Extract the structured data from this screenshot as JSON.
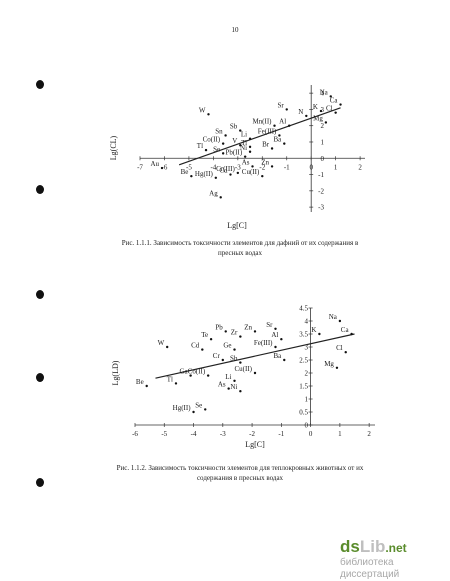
{
  "page": {
    "number": "10"
  },
  "captions": [
    "Рис. 1.1.1. Зависимость токсичности элементов для дафний от их содержания в пресных водах",
    "Рис. 1.1.2. Зависимость токсичности элементов для теплокровных животных от их содержания в пресных водах"
  ],
  "watermark": {
    "logo_ds": "ds",
    "logo_lib": "Lib",
    "logo_net": ".net",
    "subtitle": "библиотека диссертаций"
  },
  "chart_data": [
    {
      "type": "scatter",
      "title": "",
      "xlabel": "Lg[C]",
      "ylabel": "Lg(CL)",
      "xlim": [
        -7,
        2.2
      ],
      "ylim": [
        -3.3,
        4.5
      ],
      "x_ticks": [
        "-7",
        "-6",
        "-5",
        "-4",
        "-3",
        "-2",
        "-1",
        "0",
        "1",
        "2"
      ],
      "y_ticks": [
        "4",
        "3",
        "2",
        "1",
        "0",
        "-1",
        "-2",
        "-3"
      ],
      "points": [
        {
          "label": "W",
          "x": -4.2,
          "y": 2.7
        },
        {
          "label": "Sn",
          "x": -3.5,
          "y": 1.4
        },
        {
          "label": "Sb",
          "x": -2.9,
          "y": 1.7
        },
        {
          "label": "Li",
          "x": -2.5,
          "y": 1.2
        },
        {
          "label": "Mn(II)",
          "x": -1.5,
          "y": 2.0
        },
        {
          "label": "Sr",
          "x": -1.0,
          "y": 3.0
        },
        {
          "label": "Al",
          "x": -0.9,
          "y": 2.0
        },
        {
          "label": "N",
          "x": -0.2,
          "y": 2.6
        },
        {
          "label": "K",
          "x": 0.4,
          "y": 2.9
        },
        {
          "label": "Na",
          "x": 0.8,
          "y": 3.8
        },
        {
          "label": "Ca",
          "x": 1.2,
          "y": 3.3
        },
        {
          "label": "Cl",
          "x": 1.0,
          "y": 2.8
        },
        {
          "label": "Mg",
          "x": 0.6,
          "y": 2.2
        },
        {
          "label": "Fe(III)",
          "x": -1.3,
          "y": 1.4
        },
        {
          "label": "Co(II)",
          "x": -3.6,
          "y": 0.9
        },
        {
          "label": "V",
          "x": -2.9,
          "y": 0.8
        },
        {
          "label": "Ti",
          "x": -2.5,
          "y": 0.7
        },
        {
          "label": "Tl",
          "x": -4.3,
          "y": 0.5
        },
        {
          "label": "Se",
          "x": -3.6,
          "y": 0.3
        },
        {
          "label": "Ni",
          "x": -2.5,
          "y": 0.4
        },
        {
          "label": "Pb(II)",
          "x": -2.7,
          "y": 0.1
        },
        {
          "label": "Ba",
          "x": -1.1,
          "y": 0.9
        },
        {
          "label": "Br",
          "x": -1.6,
          "y": 0.6
        },
        {
          "label": "Zn",
          "x": -1.6,
          "y": -0.5
        },
        {
          "label": "As",
          "x": -2.4,
          "y": -0.5
        },
        {
          "label": "Cr(III)",
          "x": -3.0,
          "y": -0.9
        },
        {
          "label": "Cu(II)",
          "x": -2.0,
          "y": -1.1
        },
        {
          "label": "Au",
          "x": -6.1,
          "y": -0.6
        },
        {
          "label": "Be",
          "x": -4.9,
          "y": -1.1
        },
        {
          "label": "Hg(II)",
          "x": -3.9,
          "y": -1.2
        },
        {
          "label": "Cd",
          "x": -3.3,
          "y": -1.0
        },
        {
          "label": "Ag",
          "x": -3.7,
          "y": -2.4
        }
      ],
      "trendline": {
        "x": [
          -5.4,
          1.2
        ],
        "y": [
          -0.4,
          3.1
        ]
      }
    },
    {
      "type": "scatter",
      "title": "",
      "xlabel": "Lg[C]",
      "ylabel": "Lg(LD)",
      "xlim": [
        -6,
        2.2
      ],
      "ylim": [
        0,
        4.5
      ],
      "x_ticks": [
        "-6",
        "-5",
        "-4",
        "-3",
        "-2",
        "-1",
        "0",
        "1",
        "2"
      ],
      "y_ticks": [
        "4.5",
        "4",
        "3.5",
        "3",
        "2.5",
        "2",
        "1.5",
        "1",
        "0.5",
        "0"
      ],
      "points": [
        {
          "label": "Pb",
          "x": -2.9,
          "y": 3.6
        },
        {
          "label": "Zn",
          "x": -1.9,
          "y": 3.6
        },
        {
          "label": "Sr",
          "x": -1.2,
          "y": 3.7
        },
        {
          "label": "Te",
          "x": -3.4,
          "y": 3.3
        },
        {
          "label": "Zr",
          "x": -2.4,
          "y": 3.4
        },
        {
          "label": "Al",
          "x": -1.0,
          "y": 3.3
        },
        {
          "label": "K",
          "x": 0.3,
          "y": 3.5
        },
        {
          "label": "Na",
          "x": 1.0,
          "y": 4.0
        },
        {
          "label": "Ca",
          "x": 1.4,
          "y": 3.5
        },
        {
          "label": "W",
          "x": -4.9,
          "y": 3.0
        },
        {
          "label": "Cd",
          "x": -3.7,
          "y": 2.9
        },
        {
          "label": "Ge",
          "x": -2.6,
          "y": 2.9
        },
        {
          "label": "Fe(III)",
          "x": -1.2,
          "y": 3.0
        },
        {
          "label": "Cl",
          "x": 1.2,
          "y": 2.8
        },
        {
          "label": "Cr",
          "x": -3.0,
          "y": 2.5
        },
        {
          "label": "Sb",
          "x": -2.4,
          "y": 2.4
        },
        {
          "label": "Ba",
          "x": -0.9,
          "y": 2.5
        },
        {
          "label": "Mg",
          "x": 0.9,
          "y": 2.2
        },
        {
          "label": "Ga",
          "x": -4.1,
          "y": 1.9
        },
        {
          "label": "Co(II)",
          "x": -3.5,
          "y": 1.9
        },
        {
          "label": "Cu(II)",
          "x": -1.9,
          "y": 2.0
        },
        {
          "label": "Tl",
          "x": -4.6,
          "y": 1.6
        },
        {
          "label": "Li",
          "x": -2.6,
          "y": 1.7
        },
        {
          "label": "As",
          "x": -2.8,
          "y": 1.4
        },
        {
          "label": "Ni",
          "x": -2.4,
          "y": 1.3
        },
        {
          "label": "Be",
          "x": -5.6,
          "y": 1.5
        },
        {
          "label": "Hg(II)",
          "x": -4.0,
          "y": 0.5
        },
        {
          "label": "Se",
          "x": -3.6,
          "y": 0.6
        }
      ],
      "trendline": {
        "x": [
          -5.3,
          1.5
        ],
        "y": [
          1.8,
          3.5
        ]
      }
    }
  ]
}
